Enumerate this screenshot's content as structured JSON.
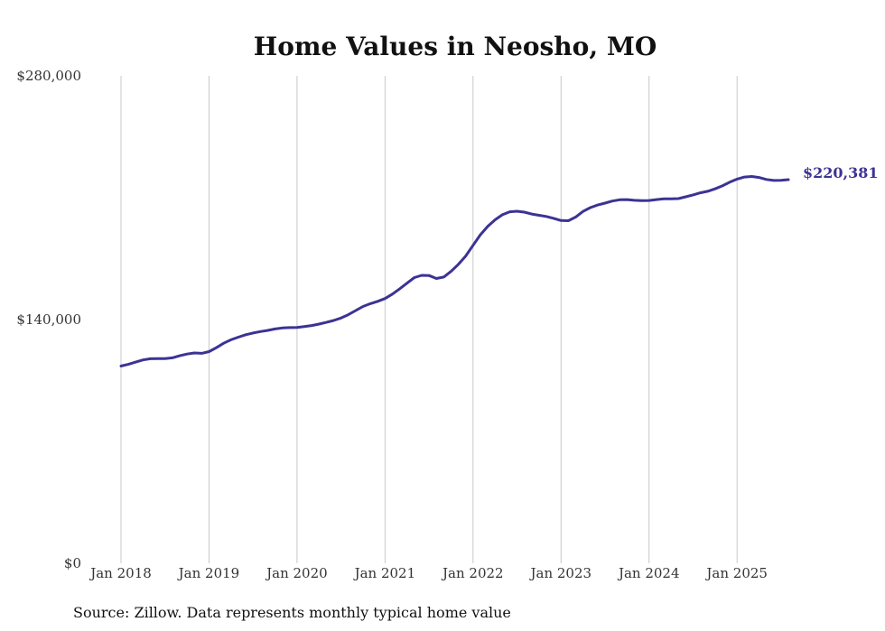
{
  "chart_data": {
    "type": "line",
    "title": "Home Values in Neosho, MO",
    "source": "Source: Zillow. Data represents monthly typical home value",
    "xlabel": "",
    "ylabel": "",
    "ylim": [
      0,
      280000
    ],
    "y_ticks": [
      {
        "value": 0,
        "label": "$0"
      },
      {
        "value": 140000,
        "label": "$140,000"
      },
      {
        "value": 280000,
        "label": "$280,000"
      }
    ],
    "x_ticks": [
      {
        "value": 2018.0,
        "label": "Jan 2018"
      },
      {
        "value": 2019.0,
        "label": "Jan 2019"
      },
      {
        "value": 2020.0,
        "label": "Jan 2020"
      },
      {
        "value": 2021.0,
        "label": "Jan 2021"
      },
      {
        "value": 2022.0,
        "label": "Jan 2022"
      },
      {
        "value": 2023.0,
        "label": "Jan 2023"
      },
      {
        "value": 2024.0,
        "label": "Jan 2024"
      },
      {
        "value": 2025.0,
        "label": "Jan 2025"
      }
    ],
    "xlim": [
      2018.0,
      2025.583
    ],
    "grid": "vertical",
    "line_color": "#3b3394",
    "end_label": "$220,381",
    "series": [
      {
        "name": "Typical home value",
        "points": [
          [
            2018.0,
            113300
          ],
          [
            2018.083,
            114300
          ],
          [
            2018.167,
            115600
          ],
          [
            2018.25,
            116800
          ],
          [
            2018.333,
            117500
          ],
          [
            2018.417,
            117600
          ],
          [
            2018.5,
            117600
          ],
          [
            2018.583,
            118000
          ],
          [
            2018.667,
            119200
          ],
          [
            2018.75,
            120200
          ],
          [
            2018.833,
            120800
          ],
          [
            2018.917,
            120600
          ],
          [
            2019.0,
            121600
          ],
          [
            2019.083,
            123800
          ],
          [
            2019.167,
            126400
          ],
          [
            2019.25,
            128400
          ],
          [
            2019.333,
            129900
          ],
          [
            2019.417,
            131300
          ],
          [
            2019.5,
            132300
          ],
          [
            2019.583,
            133100
          ],
          [
            2019.667,
            133800
          ],
          [
            2019.75,
            134600
          ],
          [
            2019.833,
            135200
          ],
          [
            2019.917,
            135400
          ],
          [
            2020.0,
            135500
          ],
          [
            2020.083,
            136000
          ],
          [
            2020.167,
            136600
          ],
          [
            2020.25,
            137400
          ],
          [
            2020.333,
            138400
          ],
          [
            2020.417,
            139500
          ],
          [
            2020.5,
            140900
          ],
          [
            2020.583,
            142800
          ],
          [
            2020.667,
            145200
          ],
          [
            2020.75,
            147500
          ],
          [
            2020.833,
            149100
          ],
          [
            2020.917,
            150500
          ],
          [
            2021.0,
            152100
          ],
          [
            2021.083,
            154600
          ],
          [
            2021.167,
            157700
          ],
          [
            2021.25,
            160900
          ],
          [
            2021.333,
            164100
          ],
          [
            2021.417,
            165400
          ],
          [
            2021.5,
            165300
          ],
          [
            2021.583,
            163600
          ],
          [
            2021.667,
            164400
          ],
          [
            2021.75,
            167700
          ],
          [
            2021.833,
            171700
          ],
          [
            2021.917,
            176500
          ],
          [
            2022.0,
            182600
          ],
          [
            2022.083,
            188700
          ],
          [
            2022.167,
            193500
          ],
          [
            2022.25,
            197300
          ],
          [
            2022.333,
            200200
          ],
          [
            2022.417,
            201900
          ],
          [
            2022.5,
            202200
          ],
          [
            2022.583,
            201700
          ],
          [
            2022.667,
            200600
          ],
          [
            2022.75,
            199900
          ],
          [
            2022.833,
            199200
          ],
          [
            2022.917,
            198100
          ],
          [
            2023.0,
            196900
          ],
          [
            2023.083,
            196800
          ],
          [
            2023.167,
            198900
          ],
          [
            2023.25,
            202100
          ],
          [
            2023.333,
            204300
          ],
          [
            2023.417,
            205800
          ],
          [
            2023.5,
            206900
          ],
          [
            2023.583,
            208100
          ],
          [
            2023.667,
            208800
          ],
          [
            2023.75,
            208900
          ],
          [
            2023.833,
            208500
          ],
          [
            2023.917,
            208300
          ],
          [
            2024.0,
            208400
          ],
          [
            2024.083,
            208900
          ],
          [
            2024.167,
            209300
          ],
          [
            2024.25,
            209400
          ],
          [
            2024.333,
            209500
          ],
          [
            2024.417,
            210500
          ],
          [
            2024.5,
            211600
          ],
          [
            2024.583,
            212800
          ],
          [
            2024.667,
            213700
          ],
          [
            2024.75,
            215100
          ],
          [
            2024.833,
            216800
          ],
          [
            2024.917,
            218900
          ],
          [
            2025.0,
            220700
          ],
          [
            2025.083,
            221900
          ],
          [
            2025.167,
            222200
          ],
          [
            2025.25,
            221600
          ],
          [
            2025.333,
            220500
          ],
          [
            2025.417,
            219900
          ],
          [
            2025.5,
            220000
          ],
          [
            2025.583,
            220381
          ]
        ]
      }
    ]
  }
}
